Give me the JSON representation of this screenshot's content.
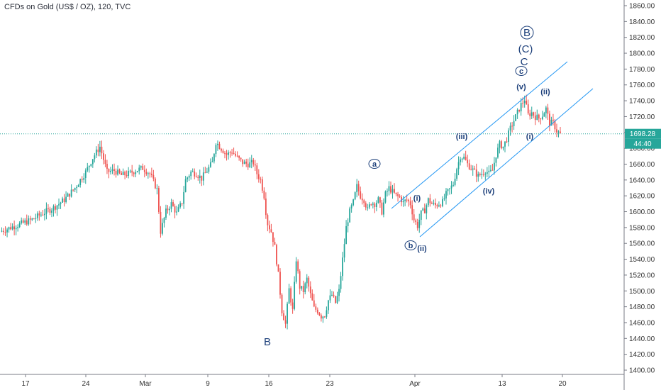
{
  "header": {
    "title": "CFDs on Gold (US$ / OZ), 120, TVC"
  },
  "chart_data": {
    "type": "candlestick",
    "symbol": "CFDs on Gold (US$ / OZ)",
    "interval": "120",
    "source": "TVC",
    "x_ticks": [
      "17",
      "24",
      "Mar",
      "9",
      "16",
      "23",
      "Apr",
      "13",
      "20"
    ],
    "y_ticks": [
      "1400.00",
      "1420.00",
      "1440.00",
      "1460.00",
      "1480.00",
      "1500.00",
      "1520.00",
      "1540.00",
      "1560.00",
      "1580.00",
      "1600.00",
      "1620.00",
      "1640.00",
      "1660.00",
      "1680.00",
      "1700.00",
      "1720.00",
      "1740.00",
      "1760.00",
      "1780.00",
      "1800.00",
      "1820.00",
      "1840.00",
      "1860.00"
    ],
    "ylim": [
      1390,
      1868
    ],
    "last_price": "1698.28",
    "countdown": "44:40",
    "colors": {
      "up": "#26a69a",
      "down": "#ef5350",
      "channel": "#2196f3",
      "price_line": "#26a69a",
      "labels": "#1c3f7a"
    },
    "price_path": [
      [
        0,
        1575
      ],
      [
        6,
        1580
      ],
      [
        12,
        1585
      ],
      [
        18,
        1590
      ],
      [
        24,
        1598
      ],
      [
        30,
        1605
      ],
      [
        36,
        1615
      ],
      [
        42,
        1630
      ],
      [
        48,
        1650
      ],
      [
        52,
        1668
      ],
      [
        56,
        1682
      ],
      [
        60,
        1650
      ],
      [
        64,
        1652
      ],
      [
        68,
        1646
      ],
      [
        72,
        1648
      ],
      [
        76,
        1652
      ],
      [
        80,
        1655
      ],
      [
        84,
        1648
      ],
      [
        88,
        1628
      ],
      [
        90,
        1575
      ],
      [
        93,
        1600
      ],
      [
        96,
        1610
      ],
      [
        99,
        1598
      ],
      [
        102,
        1612
      ],
      [
        104,
        1640
      ],
      [
        107,
        1650
      ],
      [
        110,
        1648
      ],
      [
        113,
        1642
      ],
      [
        116,
        1652
      ],
      [
        119,
        1662
      ],
      [
        121,
        1688
      ],
      [
        124,
        1680
      ],
      [
        127,
        1672
      ],
      [
        130,
        1676
      ],
      [
        133,
        1668
      ],
      [
        136,
        1662
      ],
      [
        139,
        1660
      ],
      [
        142,
        1662
      ],
      [
        144,
        1648
      ],
      [
        146,
        1640
      ],
      [
        148,
        1620
      ],
      [
        149,
        1600
      ],
      [
        150,
        1585
      ],
      [
        152,
        1575
      ],
      [
        154,
        1555
      ],
      [
        156,
        1520
      ],
      [
        158,
        1475
      ],
      [
        160,
        1458
      ],
      [
        162,
        1502
      ],
      [
        164,
        1475
      ],
      [
        166,
        1540
      ],
      [
        168,
        1505
      ],
      [
        170,
        1500
      ],
      [
        172,
        1515
      ],
      [
        174,
        1495
      ],
      [
        176,
        1478
      ],
      [
        178,
        1475
      ],
      [
        180,
        1468
      ],
      [
        182,
        1470
      ],
      [
        184,
        1488
      ],
      [
        186,
        1495
      ],
      [
        188,
        1485
      ],
      [
        190,
        1500
      ],
      [
        192,
        1540
      ],
      [
        194,
        1580
      ],
      [
        196,
        1600
      ],
      [
        198,
        1612
      ],
      [
        200,
        1632
      ],
      [
        202,
        1620
      ],
      [
        204,
        1615
      ],
      [
        206,
        1602
      ],
      [
        208,
        1612
      ],
      [
        210,
        1610
      ],
      [
        212,
        1615
      ],
      [
        214,
        1600
      ],
      [
        216,
        1622
      ],
      [
        218,
        1630
      ],
      [
        220,
        1625
      ],
      [
        222,
        1620
      ],
      [
        224,
        1618
      ],
      [
        226,
        1612
      ],
      [
        228,
        1615
      ],
      [
        230,
        1610
      ],
      [
        232,
        1590
      ],
      [
        234,
        1582
      ],
      [
        236,
        1598
      ],
      [
        238,
        1602
      ],
      [
        240,
        1615
      ],
      [
        242,
        1610
      ],
      [
        244,
        1608
      ],
      [
        246,
        1610
      ],
      [
        248,
        1612
      ],
      [
        250,
        1622
      ],
      [
        252,
        1628
      ],
      [
        254,
        1635
      ],
      [
        256,
        1655
      ],
      [
        258,
        1670
      ],
      [
        260,
        1668
      ],
      [
        262,
        1660
      ],
      [
        264,
        1655
      ],
      [
        266,
        1650
      ],
      [
        268,
        1645
      ],
      [
        270,
        1648
      ],
      [
        272,
        1652
      ],
      [
        274,
        1648
      ],
      [
        276,
        1652
      ],
      [
        278,
        1672
      ],
      [
        280,
        1685
      ],
      [
        282,
        1682
      ],
      [
        284,
        1692
      ],
      [
        286,
        1705
      ],
      [
        288,
        1715
      ],
      [
        290,
        1725
      ],
      [
        292,
        1735
      ],
      [
        294,
        1742
      ],
      [
        296,
        1722
      ],
      [
        298,
        1725
      ],
      [
        300,
        1720
      ],
      [
        302,
        1718
      ],
      [
        304,
        1722
      ],
      [
        306,
        1730
      ],
      [
        308,
        1712
      ],
      [
        310,
        1712
      ],
      [
        312,
        1702
      ],
      [
        314,
        1698
      ]
    ],
    "channel_lines": [
      {
        "from": [
          1616,
          "2020-03-31"
        ],
        "to": [
          1790,
          "2020-04-18 (ext)"
        ]
      }
    ],
    "wave_labels": [
      {
        "text": "B",
        "style": "circled-big"
      },
      {
        "text": "(C)",
        "style": "big"
      },
      {
        "text": "C",
        "style": "big"
      },
      {
        "text": "c",
        "style": "circled"
      },
      {
        "text": "(v)",
        "style": "small"
      },
      {
        "text": "(ii)",
        "style": "small"
      },
      {
        "text": "(iii)",
        "style": "small"
      },
      {
        "text": "(i)",
        "style": "small"
      },
      {
        "text": "a",
        "style": "circled"
      },
      {
        "text": "(i)",
        "style": "small"
      },
      {
        "text": "(iv)",
        "style": "small"
      },
      {
        "text": "b",
        "style": "circled"
      },
      {
        "text": "(ii)",
        "style": "small"
      },
      {
        "text": "B",
        "style": "big"
      }
    ]
  }
}
